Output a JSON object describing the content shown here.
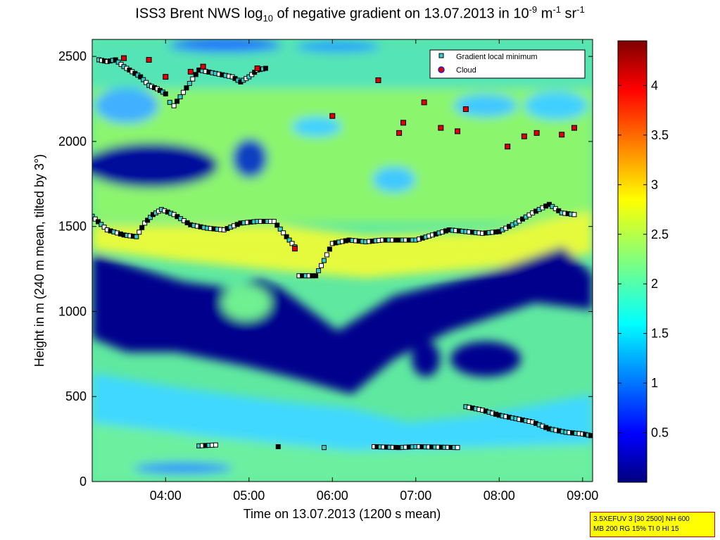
{
  "title": {
    "part1": "ISS3 Brent NWS log",
    "sub1": "10",
    "part2": " of negative gradient on 13.07.2013 in 10",
    "sup1": "-9",
    "part3": " m",
    "sup2": "-1",
    "part4": " sr",
    "sup3": "-1"
  },
  "info_box": {
    "line1": "3.5XEFUV 3 [30 2500] NH 600",
    "line2": "MB 200 RG 15% TI 0 HI 15"
  },
  "colors": {
    "low": "#00007f",
    "mid_low": "#1eb4ff",
    "mid": "#7fff7f",
    "high": "#ffd700",
    "max": "#7f0000",
    "gradient_marker": "#30d0d0",
    "cloud_marker": "#e00000"
  },
  "chart_data": {
    "type": "heatmap",
    "xlabel": "Time on 13.07.2013 (1200 s mean)",
    "ylabel": "Height in m (240 m mean, tilted by 3°)",
    "x_ticks": [
      "04:00",
      "05:00",
      "06:00",
      "07:00",
      "08:00",
      "09:00"
    ],
    "x_tick_hours": [
      4,
      5,
      6,
      7,
      8,
      9
    ],
    "xlim_hours": [
      3.12,
      9.12
    ],
    "y_ticks": [
      0,
      500,
      1000,
      1500,
      2000,
      2500
    ],
    "ylim": [
      0,
      2600
    ],
    "colorbar": {
      "ticks": [
        0.5,
        1,
        1.5,
        2,
        2.5,
        3,
        3.5,
        4
      ],
      "range": [
        0,
        4.45
      ],
      "colormap": "jet"
    },
    "legend": {
      "position": "top-right",
      "entries": [
        {
          "label": "Gradient local minimum",
          "marker": "square"
        },
        {
          "label": "Cloud",
          "marker": "circle"
        }
      ]
    },
    "series": [
      {
        "name": "Gradient local minimum",
        "layer": "upper",
        "points": [
          [
            3.2,
            2480
          ],
          [
            3.3,
            2470
          ],
          [
            3.4,
            2480
          ],
          [
            3.5,
            2440
          ],
          [
            3.6,
            2410
          ],
          [
            3.7,
            2380
          ],
          [
            3.8,
            2330
          ],
          [
            3.9,
            2310
          ],
          [
            4.0,
            2280
          ],
          [
            4.05,
            2230
          ],
          [
            4.1,
            2210
          ],
          [
            4.4,
            2420
          ],
          [
            4.6,
            2400
          ],
          [
            4.8,
            2380
          ],
          [
            4.9,
            2350
          ],
          [
            5.0,
            2380
          ],
          [
            5.1,
            2420
          ],
          [
            5.2,
            2430
          ]
        ]
      },
      {
        "name": "Gradient local minimum",
        "layer": "middle",
        "points": [
          [
            3.12,
            1560
          ],
          [
            3.3,
            1480
          ],
          [
            3.5,
            1450
          ],
          [
            3.65,
            1440
          ],
          [
            3.75,
            1520
          ],
          [
            3.85,
            1570
          ],
          [
            3.95,
            1600
          ],
          [
            4.1,
            1570
          ],
          [
            4.3,
            1510
          ],
          [
            4.5,
            1490
          ],
          [
            4.7,
            1480
          ],
          [
            4.9,
            1520
          ],
          [
            5.1,
            1530
          ],
          [
            5.3,
            1530
          ],
          [
            5.45,
            1440
          ],
          [
            5.55,
            1380
          ],
          [
            5.6,
            1210
          ],
          [
            5.8,
            1210
          ],
          [
            5.9,
            1300
          ],
          [
            6.0,
            1400
          ],
          [
            6.2,
            1420
          ],
          [
            6.4,
            1410
          ],
          [
            6.6,
            1420
          ],
          [
            6.8,
            1420
          ],
          [
            7.0,
            1420
          ],
          [
            7.2,
            1450
          ],
          [
            7.4,
            1480
          ],
          [
            7.6,
            1470
          ],
          [
            7.8,
            1460
          ],
          [
            8.0,
            1470
          ],
          [
            8.2,
            1520
          ],
          [
            8.4,
            1580
          ],
          [
            8.6,
            1630
          ],
          [
            8.75,
            1580
          ],
          [
            8.9,
            1570
          ]
        ]
      },
      {
        "name": "Gradient local minimum",
        "layer": "lower",
        "points": [
          [
            7.6,
            440
          ],
          [
            7.8,
            420
          ],
          [
            8.0,
            390
          ],
          [
            8.2,
            370
          ],
          [
            8.4,
            350
          ],
          [
            8.6,
            310
          ],
          [
            8.8,
            290
          ],
          [
            9.0,
            280
          ],
          [
            9.1,
            270
          ]
        ]
      },
      {
        "name": "Gradient local minimum",
        "layer": "ground",
        "points": [
          [
            4.4,
            210
          ],
          [
            4.6,
            215
          ],
          [
            5.35,
            205
          ],
          [
            5.9,
            200
          ],
          [
            6.5,
            205
          ],
          [
            6.8,
            200
          ],
          [
            7.0,
            205
          ],
          [
            7.5,
            200
          ]
        ]
      },
      {
        "name": "Cloud",
        "points": [
          [
            3.5,
            2490
          ],
          [
            3.8,
            2480
          ],
          [
            4.0,
            2380
          ],
          [
            4.3,
            2410
          ],
          [
            4.45,
            2440
          ],
          [
            5.1,
            2430
          ],
          [
            6.0,
            2150
          ],
          [
            6.55,
            2360
          ],
          [
            6.8,
            2050
          ],
          [
            6.85,
            2110
          ],
          [
            7.1,
            2230
          ],
          [
            7.3,
            2080
          ],
          [
            7.5,
            2060
          ],
          [
            7.6,
            2190
          ],
          [
            8.1,
            1970
          ],
          [
            8.3,
            2030
          ],
          [
            8.45,
            2050
          ],
          [
            8.75,
            2040
          ],
          [
            5.55,
            1370
          ],
          [
            8.9,
            2080
          ]
        ]
      }
    ]
  }
}
